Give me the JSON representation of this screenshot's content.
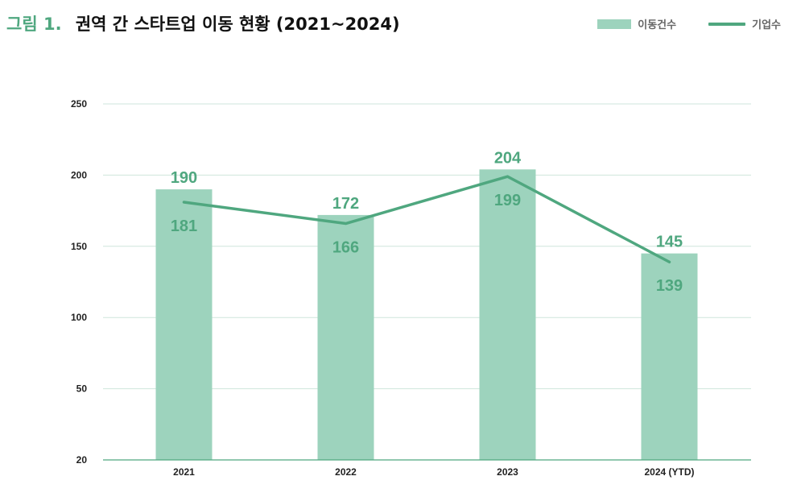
{
  "title": {
    "fig_label": "그림 1.",
    "text": "권역 간 스타트업 이동 현황 (2021~2024)"
  },
  "colors": {
    "bar": "#9dd3bd",
    "line": "#4fa77f",
    "label": "#4fa77f",
    "grid": "#cfe6dc",
    "axis": "#4fa77f"
  },
  "chart_data": {
    "type": "bar",
    "title": "권역 간 스타트업 이동 현황 (2021~2024)",
    "categories": [
      "2021",
      "2022",
      "2023",
      "2024 (YTD)"
    ],
    "series": [
      {
        "name": "이동건수",
        "type": "bar",
        "values": [
          190,
          172,
          204,
          145
        ]
      },
      {
        "name": "기업수",
        "type": "line",
        "values": [
          181,
          166,
          199,
          139
        ]
      }
    ],
    "yticks": [
      20,
      50,
      100,
      150,
      200,
      250
    ],
    "ylim": [
      20,
      250
    ],
    "grid": true,
    "legend_position": "top-right"
  }
}
